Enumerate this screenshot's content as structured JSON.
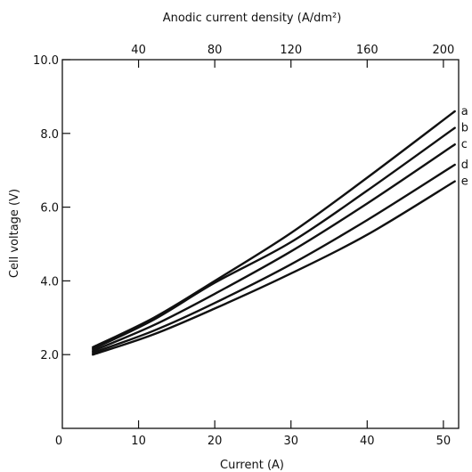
{
  "chart_data": {
    "type": "line",
    "title": "",
    "xlabel": "Current (A)",
    "ylabel": "Cell voltage (V)",
    "x2label": "Anodic current density (A/dm²)",
    "xlim": [
      0,
      52
    ],
    "ylim": [
      0,
      10.0
    ],
    "x2lim": [
      0,
      208
    ],
    "xticks": [
      10,
      20,
      30,
      40,
      50
    ],
    "xtick_labels": [
      "10",
      "20",
      "30",
      "40",
      "50"
    ],
    "origin_label": "0",
    "yticks": [
      2.0,
      4.0,
      6.0,
      8.0,
      10.0
    ],
    "ytick_labels": [
      "2.0",
      "4.0",
      "6.0",
      "8.0",
      "10.0"
    ],
    "x2ticks": [
      40,
      80,
      120,
      160,
      200
    ],
    "x2tick_labels": [
      "40",
      "80",
      "120",
      "160",
      "200"
    ],
    "grid": false,
    "series": [
      {
        "name": "a",
        "x": [
          4,
          12,
          20,
          30,
          40,
          51.5
        ],
        "y": [
          2.2,
          3.0,
          4.0,
          5.3,
          6.8,
          8.6
        ]
      },
      {
        "name": "b",
        "x": [
          4,
          12,
          20,
          30,
          40,
          51.5
        ],
        "y": [
          2.15,
          2.95,
          3.95,
          5.05,
          6.45,
          8.15
        ]
      },
      {
        "name": "c",
        "x": [
          4,
          12,
          20,
          30,
          40,
          51.5
        ],
        "y": [
          2.1,
          2.8,
          3.65,
          4.8,
          6.1,
          7.7
        ]
      },
      {
        "name": "d",
        "x": [
          4,
          12,
          20,
          30,
          40,
          51.5
        ],
        "y": [
          2.05,
          2.65,
          3.4,
          4.45,
          5.65,
          7.15
        ]
      },
      {
        "name": "e",
        "x": [
          4,
          12,
          20,
          30,
          40,
          51.5
        ],
        "y": [
          2.0,
          2.55,
          3.25,
          4.2,
          5.25,
          6.7
        ]
      }
    ]
  }
}
